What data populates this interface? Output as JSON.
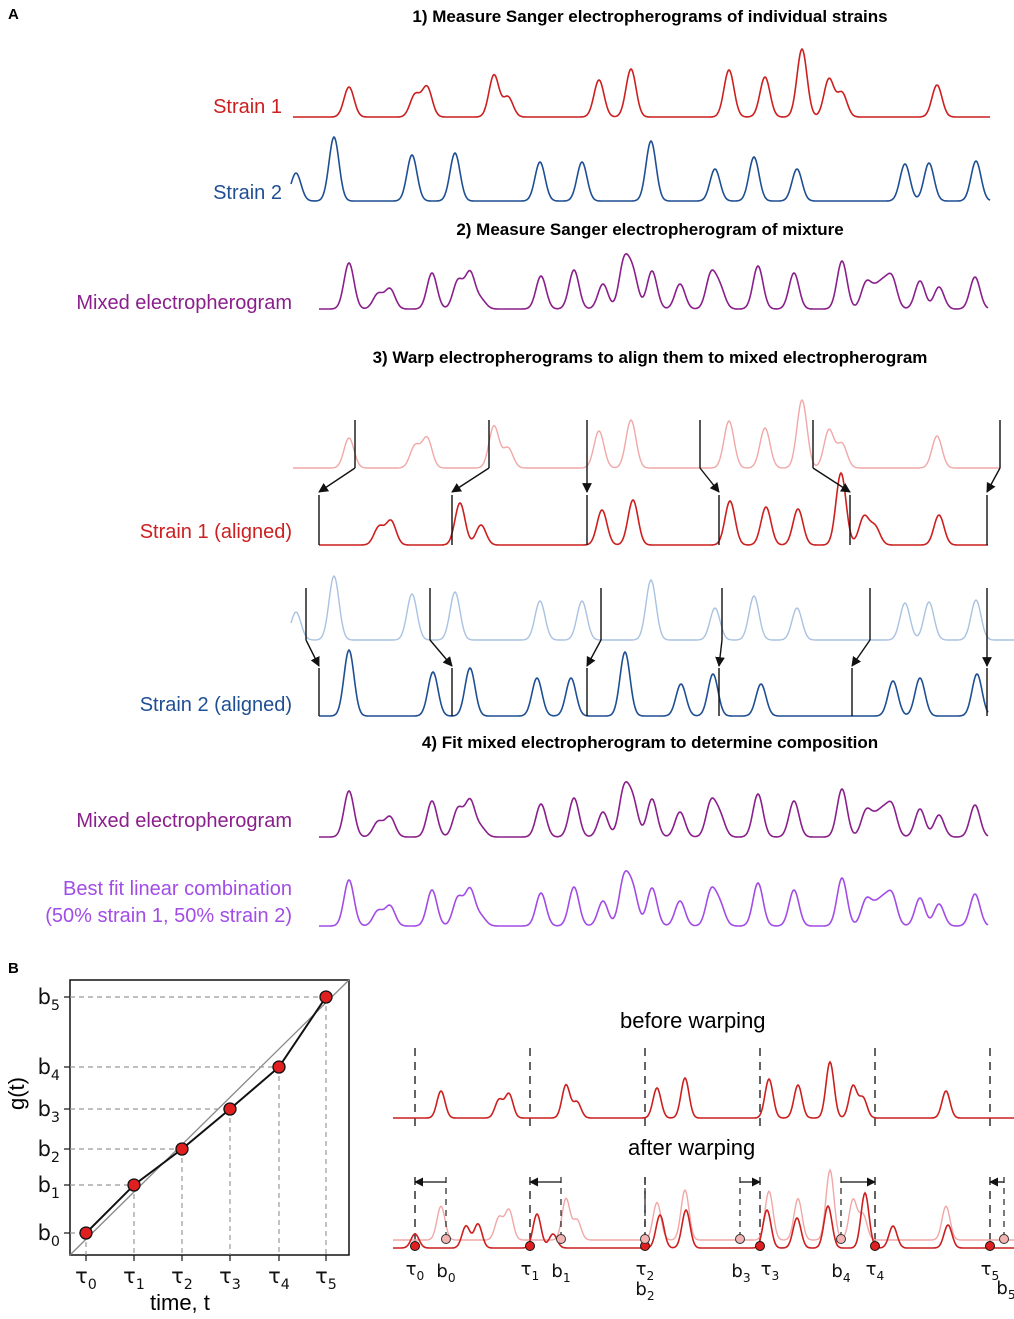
{
  "panel_a": {
    "letter": "A",
    "step1_title": "1) Measure Sanger electropherograms of individual strains",
    "step2_title": "2) Measure Sanger electropherogram of mixture",
    "step3_title": "3) Warp electropherograms to align them to mixed electropherogram",
    "step4_title": "4) Fit mixed electropherogram to determine composition",
    "labels": {
      "strain1": "Strain 1",
      "strain2": "Strain 2",
      "mixed": "Mixed electropherogram",
      "strain1_aligned": "Strain 1 (aligned)",
      "strain2_aligned": "Strain 2 (aligned)",
      "mixed_again": "Mixed electropherogram",
      "fit_line1": "Best fit linear combination",
      "fit_line2": "(50% strain 1, 50% strain 2)"
    }
  },
  "panel_b": {
    "letter": "B",
    "plot": {
      "ylabel": "g(t)",
      "xlabel": "time, t",
      "tick_tau": [
        "τ0",
        "τ1",
        "τ2",
        "τ3",
        "τ4",
        "τ5"
      ],
      "tick_b": [
        "b0",
        "b1",
        "b2",
        "b3",
        "b4",
        "b5"
      ]
    },
    "before_title": "before warping",
    "after_title": "after warping",
    "tau_labels": [
      "τ0",
      "τ1",
      "τ2",
      "τ3",
      "τ4",
      "τ5"
    ],
    "b_labels": [
      "b0",
      "b1",
      "b2",
      "b3",
      "b4",
      "b5"
    ]
  },
  "colors": {
    "strain1": "#cc1f1f",
    "strain1_light": "#f1a7a7",
    "strain2": "#1f4f93",
    "strain2_light": "#a9c2e0",
    "mixed": "#8a1f8c",
    "fit": "#a24ce6",
    "point": "#e02020"
  }
}
